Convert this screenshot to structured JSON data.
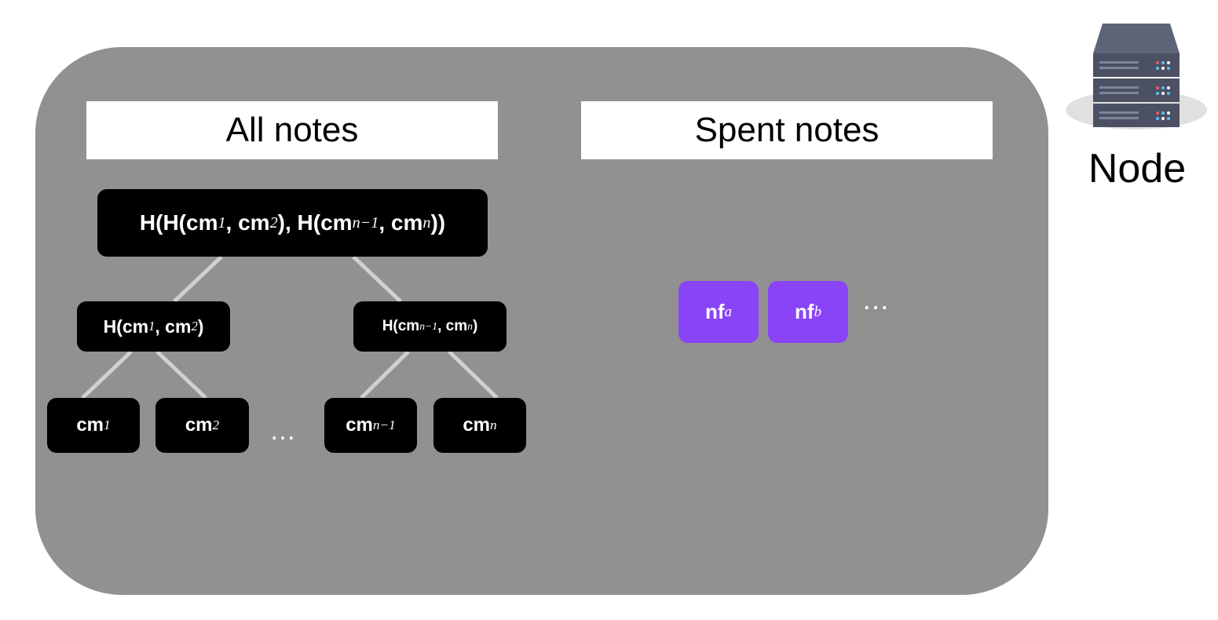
{
  "panels": [
    {
      "title": "All notes"
    },
    {
      "title": "Spent notes"
    }
  ],
  "tree": {
    "root": [
      "H(H(cm",
      "1",
      ", cm",
      "2",
      "), H(cm",
      "n−1",
      ", cm",
      "n",
      "))"
    ],
    "level2": [
      [
        "H(cm",
        "1",
        ", cm",
        "2",
        ")"
      ],
      [
        "H(cm",
        "n−1",
        ", cm",
        "n",
        ")"
      ]
    ],
    "leaves": [
      [
        "cm",
        "1"
      ],
      [
        "cm",
        "2"
      ],
      [
        "cm",
        "n−1"
      ],
      [
        "cm",
        "n"
      ]
    ],
    "ellipsis": "…"
  },
  "nullifiers": {
    "items": [
      [
        "nf",
        "a"
      ],
      [
        "nf",
        "b"
      ]
    ],
    "ellipsis": "⋯"
  },
  "server": {
    "label": "Node"
  }
}
